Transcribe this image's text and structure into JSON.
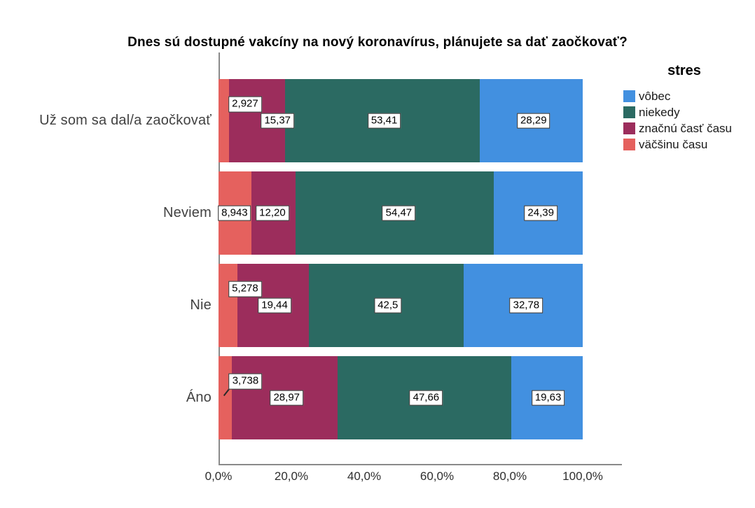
{
  "title": "Dnes sú dostupné vakcíny na nový koronavírus, plánujete sa dať zaočkovať?",
  "legend": {
    "title": "stres",
    "items": [
      {
        "label": "vôbec",
        "color": "#4290e0"
      },
      {
        "label": "niekedy",
        "color": "#2b6a62"
      },
      {
        "label": "značnú časť času",
        "color": "#9c2d5c"
      },
      {
        "label": "väčšinu času",
        "color": "#e5615e"
      }
    ]
  },
  "x_axis": {
    "tick_labels": [
      "0,0%",
      "20,0%",
      "40,0%",
      "60,0%",
      "80,0%",
      "100,0%"
    ],
    "min": 0,
    "max": 100
  },
  "chart_data": {
    "type": "bar",
    "orientation": "horizontal",
    "stacked": true,
    "units": "percent",
    "title": "Dnes sú dostupné vakcíny na nový koronavírus, plánujete sa dať zaočkovať?",
    "legend_title": "stres",
    "legend_position": "top-right",
    "xlim": [
      0,
      100
    ],
    "xtick_labels": [
      "0,0%",
      "20,0%",
      "40,0%",
      "60,0%",
      "80,0%",
      "100,0%"
    ],
    "categories": [
      "Už som sa dal/a zaočkovať",
      "Neviem",
      "Nie",
      "Áno"
    ],
    "stack_order": [
      "väčšinu času",
      "značnú časť času",
      "niekedy",
      "vôbec"
    ],
    "series": [
      {
        "name": "väčšinu času",
        "color": "#e5615e",
        "values": [
          2.927,
          8.943,
          5.278,
          3.738
        ],
        "labels": [
          "2,927",
          "8,943",
          "5,278",
          "3,738"
        ]
      },
      {
        "name": "značnú časť času",
        "color": "#9c2d5c",
        "values": [
          15.37,
          12.2,
          19.44,
          28.97
        ],
        "labels": [
          "15,37",
          "12,20",
          "19,44",
          "28,97"
        ]
      },
      {
        "name": "niekedy",
        "color": "#2b6a62",
        "values": [
          53.41,
          54.47,
          42.5,
          47.66
        ],
        "labels": [
          "53,41",
          "54,47",
          "42,5",
          "47,66"
        ]
      },
      {
        "name": "vôbec",
        "color": "#4290e0",
        "values": [
          28.29,
          24.39,
          32.78,
          19.63
        ],
        "labels": [
          "28,29",
          "24,39",
          "32,78",
          "19,63"
        ]
      }
    ],
    "label_layout": [
      [
        {
          "x": 7.3,
          "y": "high"
        },
        {
          "x": 16.2,
          "y": "center"
        },
        {
          "x": 45.5,
          "y": "center"
        },
        {
          "x": 86.5,
          "y": "center"
        }
      ],
      [
        {
          "x": 4.4,
          "y": "center"
        },
        {
          "x": 14.8,
          "y": "center"
        },
        {
          "x": 49.5,
          "y": "center"
        },
        {
          "x": 88.5,
          "y": "center"
        }
      ],
      [
        {
          "x": 7.3,
          "y": "high"
        },
        {
          "x": 15.4,
          "y": "center"
        },
        {
          "x": 46.5,
          "y": "center"
        },
        {
          "x": 84.5,
          "y": "center"
        }
      ],
      [
        {
          "x": 7.4,
          "y": "high",
          "callout": true
        },
        {
          "x": 18.7,
          "y": "center"
        },
        {
          "x": 57.0,
          "y": "center"
        },
        {
          "x": 90.5,
          "y": "center"
        }
      ]
    ]
  }
}
